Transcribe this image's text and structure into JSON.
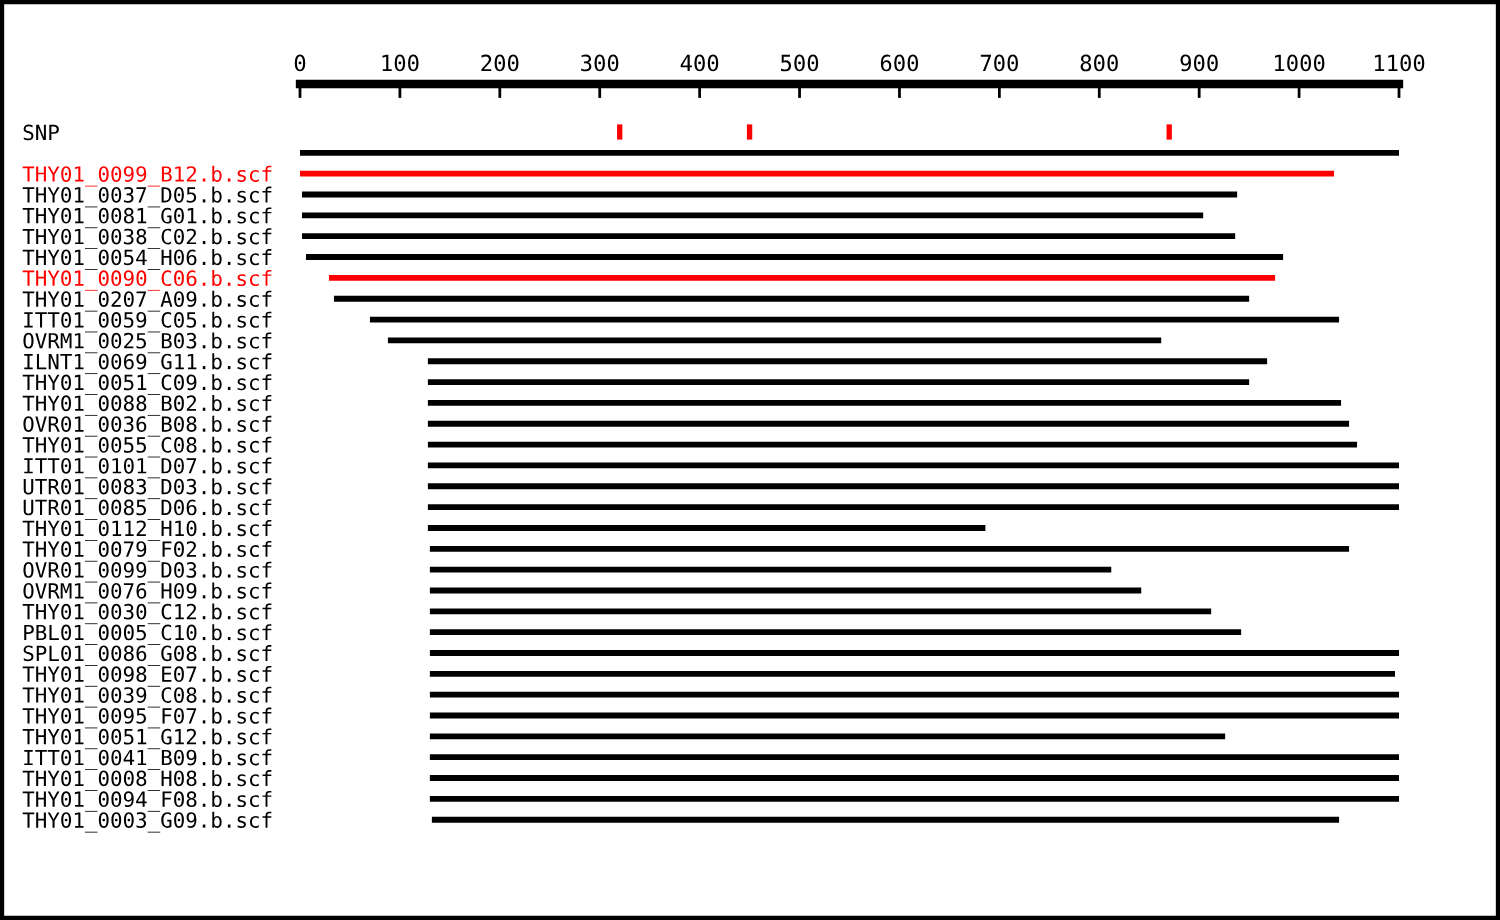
{
  "chart_data": {
    "type": "bar",
    "orientation": "horizontal",
    "categories": [
      "SNP",
      null,
      "THY01_0099_B12.b.scf",
      "THY01_0037_D05.b.scf",
      "THY01_0081_G01.b.scf",
      "THY01_0038_C02.b.scf",
      "THY01_0054_H06.b.scf",
      "THY01_0090_C06.b.scf",
      "THY01_0207_A09.b.scf",
      "ITT01_0059_C05.b.scf",
      "OVRM1_0025_B03.b.scf",
      "ILNT1_0069_G11.b.scf",
      "THY01_0051_C09.b.scf",
      "THY01_0088_B02.b.scf",
      "OVR01_0036_B08.b.scf",
      "THY01_0055_C08.b.scf",
      "ITT01_0101_D07.b.scf",
      "UTR01_0083_D03.b.scf",
      "UTR01_0085_D06.b.scf",
      "THY01_0112_H10.b.scf",
      "THY01_0079_F02.b.scf",
      "OVR01_0099_D03.b.scf",
      "OVRM1_0076_H09.b.scf",
      "THY01_0030_C12.b.scf",
      "PBL01_0005_C10.b.scf",
      "SPL01_0086_G08.b.scf",
      "THY01_0098_E07.b.scf",
      "THY01_0039_C08.b.scf",
      "THY01_0095_F07.b.scf",
      "THY01_0051_G12.b.scf",
      "ITT01_0041_B09.b.scf",
      "THY01_0008_H08.b.scf",
      "THY01_0094_F08.b.scf",
      "THY01_0003_G09.b.scf"
    ],
    "base": [
      null,
      0,
      0,
      2,
      2,
      2,
      6,
      29,
      34,
      70,
      88,
      128,
      128,
      128,
      128,
      128,
      128,
      128,
      128,
      128,
      130,
      130,
      130,
      130,
      130,
      130,
      130,
      130,
      130,
      130,
      130,
      130,
      130,
      132
    ],
    "values": [
      null,
      1100,
      1035,
      936,
      902,
      934,
      978,
      947,
      916,
      970,
      774,
      840,
      822,
      914,
      922,
      930,
      972,
      972,
      972,
      558,
      920,
      682,
      712,
      782,
      812,
      970,
      966,
      970,
      970,
      796,
      970,
      970,
      970,
      908
    ],
    "colors": [
      "#000000",
      "#000000",
      "#ff0000",
      "#000000",
      "#000000",
      "#000000",
      "#000000",
      "#ff0000",
      "#000000",
      "#000000",
      "#000000",
      "#000000",
      "#000000",
      "#000000",
      "#000000",
      "#000000",
      "#000000",
      "#000000",
      "#000000",
      "#000000",
      "#000000",
      "#000000",
      "#000000",
      "#000000",
      "#000000",
      "#000000",
      "#000000",
      "#000000",
      "#000000",
      "#000000",
      "#000000",
      "#000000",
      "#000000",
      "#000000"
    ],
    "series": [
      {
        "type": "scatter",
        "color": "#ff0000",
        "marker": "square",
        "values": [
          320,
          null,
          null,
          null,
          null,
          null,
          null,
          null,
          null,
          null,
          null,
          null,
          null,
          null,
          null,
          null,
          null,
          null,
          null,
          null,
          null,
          null,
          null,
          null,
          null,
          null,
          null,
          null,
          null,
          null,
          null,
          null,
          null,
          null
        ]
      },
      {
        "type": "scatter",
        "color": "#ff0000",
        "marker": "square",
        "values": [
          450,
          null,
          null,
          null,
          null,
          null,
          null,
          null,
          null,
          null,
          null,
          null,
          null,
          null,
          null,
          null,
          null,
          null,
          null,
          null,
          null,
          null,
          null,
          null,
          null,
          null,
          null,
          null,
          null,
          null,
          null,
          null,
          null,
          null
        ]
      },
      {
        "type": "scatter",
        "color": "#ff0000",
        "marker": "square",
        "values": [
          870,
          null,
          null,
          null,
          null,
          null,
          null,
          null,
          null,
          null,
          null,
          null,
          null,
          null,
          null,
          null,
          null,
          null,
          null,
          null,
          null,
          null,
          null,
          null,
          null,
          null,
          null,
          null,
          null,
          null,
          null,
          null,
          null,
          null
        ]
      }
    ],
    "xlim": [
      0,
      1100
    ],
    "xticks": [
      0,
      100,
      200,
      300,
      400,
      500,
      600,
      700,
      800,
      900,
      1000,
      1100
    ],
    "grid": false,
    "legend": false
  }
}
